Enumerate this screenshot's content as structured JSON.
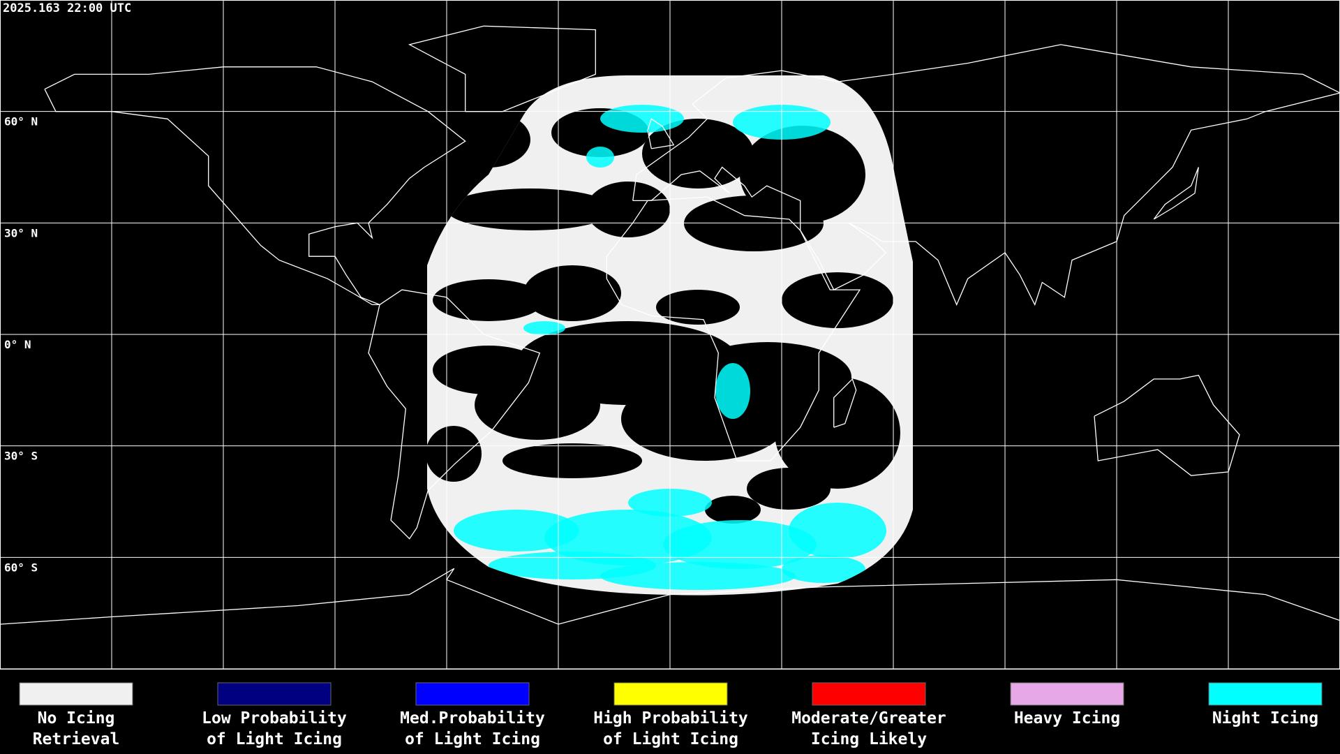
{
  "timestamp": "2025.163 22:00 UTC",
  "latitude_labels": [
    "60° N",
    "30° N",
    "0° N",
    "30° S",
    "60° S"
  ],
  "legend": [
    {
      "color": "#f0f0f0",
      "label": [
        "No Icing",
        "Retrieval"
      ]
    },
    {
      "color": "#000080",
      "label": [
        "Low Probability",
        "of Light Icing"
      ]
    },
    {
      "color": "#0000ff",
      "label": [
        "Med.Probability",
        "of Light Icing"
      ]
    },
    {
      "color": "#ffff00",
      "label": [
        "High Probability",
        "of Light Icing"
      ]
    },
    {
      "color": "#ff0000",
      "label": [
        "Moderate/Greater",
        "Icing Likely"
      ]
    },
    {
      "color": "#e6a8e6",
      "label": [
        "Heavy Icing"
      ]
    },
    {
      "color": "#00ffff",
      "label": [
        "Night Icing"
      ]
    }
  ]
}
